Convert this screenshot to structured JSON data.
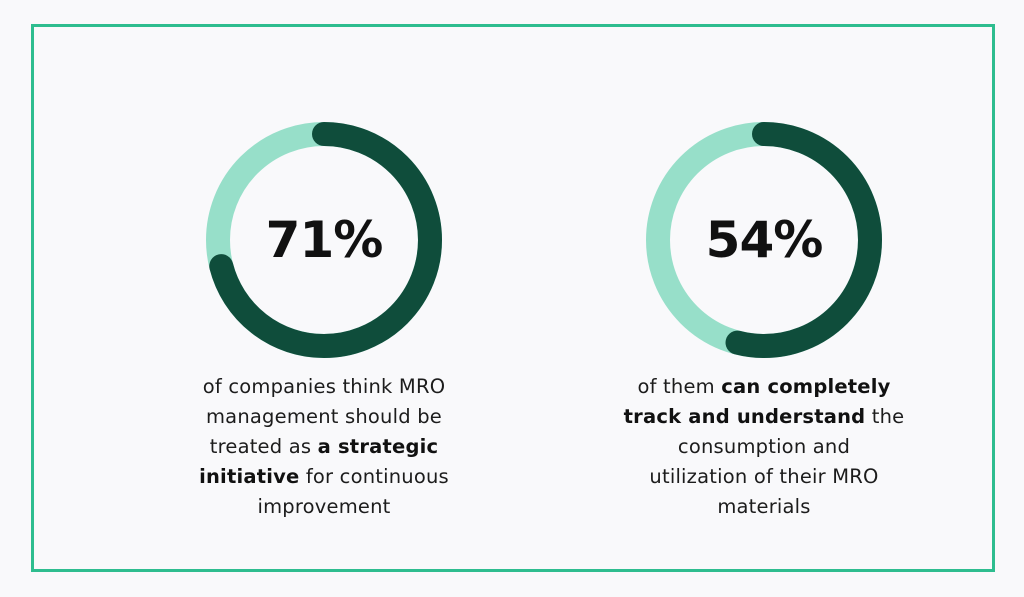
{
  "colors": {
    "border": "#2ebd8f",
    "filled": "#0f4d3b",
    "remaining": "#97dfc9",
    "background": "#f9f9fb"
  },
  "chart_data": [
    {
      "type": "pie",
      "variant": "donut",
      "value": 71,
      "unit": "%",
      "label": "71%",
      "caption": {
        "lines": [
          [
            {
              "text": "of companies think MRO",
              "bold": false
            }
          ],
          [
            {
              "text": "management should be",
              "bold": false
            }
          ],
          [
            {
              "text": "treated as ",
              "bold": false
            },
            {
              "text": "a strategic",
              "bold": true
            }
          ],
          [
            {
              "text": "initiative",
              "bold": true
            },
            {
              "text": " for continuous",
              "bold": false
            }
          ],
          [
            {
              "text": "improvement",
              "bold": false
            }
          ]
        ]
      }
    },
    {
      "type": "pie",
      "variant": "donut",
      "value": 54,
      "unit": "%",
      "label": "54%",
      "caption": {
        "lines": [
          [
            {
              "text": "of them ",
              "bold": false
            },
            {
              "text": "can completely",
              "bold": true
            }
          ],
          [
            {
              "text": "track and understand",
              "bold": true
            },
            {
              "text": " the",
              "bold": false
            }
          ],
          [
            {
              "text": "consumption and",
              "bold": false
            }
          ],
          [
            {
              "text": "utilization of their MRO",
              "bold": false
            }
          ],
          [
            {
              "text": "materials",
              "bold": false
            }
          ]
        ]
      }
    }
  ]
}
